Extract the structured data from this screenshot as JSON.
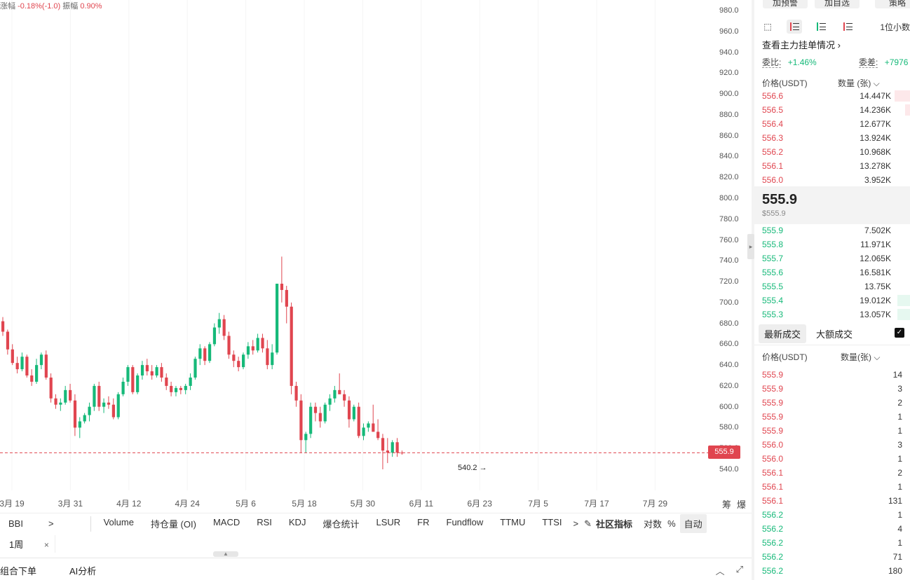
{
  "chart_header": {
    "change_label": "涨幅",
    "change_value": "-0.18%(-1.0)",
    "amplitude_label": "振幅",
    "amplitude_value": "0.90%"
  },
  "chart_data": {
    "type": "candlestick",
    "y_ticks": [
      "980.0",
      "960.0",
      "940.0",
      "920.0",
      "900.0",
      "880.0",
      "860.0",
      "840.0",
      "820.0",
      "800.0",
      "780.0",
      "760.0",
      "740.0",
      "720.0",
      "700.0",
      "680.0",
      "660.0",
      "640.0",
      "620.0",
      "600.0",
      "580.0",
      "560.0",
      "540.0"
    ],
    "x_ticks": [
      "3月 19",
      "3月 31",
      "4月 12",
      "4月 24",
      "5月 6",
      "5月 18",
      "5月 30",
      "6月 11",
      "6月 23",
      "7月 5",
      "7月 17",
      "7月 29"
    ],
    "ylim": [
      540,
      980
    ],
    "current_price": "555.9",
    "min_marker": "540.2",
    "candles": [
      [
        682,
        686,
        668,
        672
      ],
      [
        672,
        674,
        650,
        655
      ],
      [
        655,
        660,
        640,
        642
      ],
      [
        642,
        648,
        632,
        636
      ],
      [
        636,
        652,
        634,
        648
      ],
      [
        648,
        650,
        628,
        630
      ],
      [
        630,
        636,
        620,
        624
      ],
      [
        624,
        646,
        622,
        640
      ],
      [
        640,
        652,
        636,
        650
      ],
      [
        650,
        654,
        626,
        628
      ],
      [
        628,
        632,
        604,
        608
      ],
      [
        608,
        612,
        598,
        602
      ],
      [
        602,
        608,
        596,
        604
      ],
      [
        604,
        620,
        602,
        616
      ],
      [
        616,
        622,
        604,
        606
      ],
      [
        606,
        612,
        572,
        580
      ],
      [
        580,
        590,
        570,
        586
      ],
      [
        586,
        594,
        584,
        592
      ],
      [
        592,
        604,
        586,
        600
      ],
      [
        600,
        622,
        596,
        620
      ],
      [
        620,
        624,
        596,
        600
      ],
      [
        600,
        608,
        594,
        604
      ],
      [
        604,
        610,
        598,
        602
      ],
      [
        602,
        608,
        588,
        590
      ],
      [
        590,
        614,
        588,
        612
      ],
      [
        612,
        628,
        610,
        624
      ],
      [
        624,
        640,
        620,
        638
      ],
      [
        638,
        640,
        612,
        614
      ],
      [
        614,
        632,
        612,
        630
      ],
      [
        630,
        644,
        626,
        640
      ],
      [
        640,
        646,
        630,
        634
      ],
      [
        634,
        640,
        626,
        630
      ],
      [
        630,
        640,
        628,
        638
      ],
      [
        638,
        642,
        624,
        628
      ],
      [
        628,
        632,
        616,
        620
      ],
      [
        620,
        624,
        610,
        614
      ],
      [
        614,
        620,
        610,
        618
      ],
      [
        618,
        620,
        612,
        616
      ],
      [
        616,
        622,
        612,
        620
      ],
      [
        620,
        632,
        616,
        628
      ],
      [
        628,
        648,
        626,
        646
      ],
      [
        646,
        660,
        640,
        656
      ],
      [
        656,
        658,
        640,
        644
      ],
      [
        644,
        662,
        642,
        660
      ],
      [
        660,
        680,
        658,
        676
      ],
      [
        676,
        690,
        670,
        684
      ],
      [
        684,
        688,
        664,
        668
      ],
      [
        668,
        672,
        646,
        650
      ],
      [
        650,
        654,
        638,
        644
      ],
      [
        644,
        648,
        634,
        638
      ],
      [
        638,
        652,
        636,
        650
      ],
      [
        650,
        662,
        646,
        658
      ],
      [
        658,
        664,
        650,
        654
      ],
      [
        654,
        670,
        652,
        666
      ],
      [
        666,
        670,
        652,
        656
      ],
      [
        656,
        664,
        636,
        640
      ],
      [
        640,
        660,
        636,
        652
      ],
      [
        652,
        718,
        650,
        718
      ],
      [
        718,
        744,
        700,
        712
      ],
      [
        712,
        716,
        680,
        696
      ],
      [
        696,
        700,
        612,
        620
      ],
      [
        620,
        624,
        600,
        606
      ],
      [
        606,
        612,
        556,
        568
      ],
      [
        568,
        576,
        556,
        574
      ],
      [
        574,
        604,
        570,
        600
      ],
      [
        600,
        604,
        586,
        594
      ],
      [
        594,
        600,
        580,
        586
      ],
      [
        586,
        604,
        584,
        602
      ],
      [
        602,
        612,
        596,
        608
      ],
      [
        608,
        620,
        604,
        616
      ],
      [
        616,
        632,
        612,
        612
      ],
      [
        612,
        616,
        600,
        606
      ],
      [
        606,
        610,
        580,
        588
      ],
      [
        588,
        602,
        586,
        600
      ],
      [
        600,
        604,
        570,
        572
      ],
      [
        572,
        584,
        568,
        580
      ],
      [
        580,
        586,
        576,
        584
      ],
      [
        584,
        602,
        576,
        576
      ],
      [
        576,
        588,
        568,
        570
      ],
      [
        570,
        574,
        540,
        558
      ],
      [
        558,
        570,
        546,
        556
      ],
      [
        556,
        568,
        552,
        566
      ],
      [
        566,
        570,
        552,
        556
      ],
      [
        556,
        558,
        554,
        555.9
      ]
    ]
  },
  "indicators": {
    "first": "BBI",
    "more_arrow": ">",
    "items": [
      "Volume",
      "持仓量 (OI)",
      "MACD",
      "RSI",
      "KDJ",
      "爆仓统计",
      "LSUR",
      "FR",
      "Fundflow",
      "TTMU",
      "TTSI"
    ],
    "more_arrow2": ">",
    "edit_icon": "✎",
    "community": "社区指标",
    "log": "对数",
    "percent": "%",
    "auto": "自动"
  },
  "axis_extras": {
    "chips": "筹",
    "burst": "爆"
  },
  "timeframe": {
    "chip": "1周",
    "close": "×"
  },
  "bottom_tabs": {
    "combo_order": "组合下单",
    "ai_analysis": "AI分析"
  },
  "right_panel": {
    "top_buttons": [
      "加预警",
      "加自选",
      "策略"
    ],
    "precision": "1位小数",
    "depth_link": "查看主力挂单情况",
    "ratio_label": "委比:",
    "ratio_value": "+1.46%",
    "diff_label": "委差:",
    "diff_value": "+7976",
    "ob_price_header": "价格(USDT)",
    "ob_qty_header": "数量 (张)",
    "asks": [
      {
        "price": "556.6",
        "qty": "14.447K",
        "depth": 0.1
      },
      {
        "price": "556.5",
        "qty": "14.236K",
        "depth": 0.03
      },
      {
        "price": "556.4",
        "qty": "12.677K",
        "depth": 0
      },
      {
        "price": "556.3",
        "qty": "13.924K",
        "depth": 0
      },
      {
        "price": "556.2",
        "qty": "10.968K",
        "depth": 0
      },
      {
        "price": "556.1",
        "qty": "13.278K",
        "depth": 0
      },
      {
        "price": "556.0",
        "qty": "3.952K",
        "depth": 0
      }
    ],
    "mid_price": "555.9",
    "mid_usd": "$555.9",
    "bids": [
      {
        "price": "555.9",
        "qty": "7.502K",
        "depth": 0
      },
      {
        "price": "555.8",
        "qty": "11.971K",
        "depth": 0
      },
      {
        "price": "555.7",
        "qty": "12.065K",
        "depth": 0
      },
      {
        "price": "555.6",
        "qty": "16.581K",
        "depth": 0
      },
      {
        "price": "555.5",
        "qty": "13.75K",
        "depth": 0
      },
      {
        "price": "555.4",
        "qty": "19.012K",
        "depth": 0.08
      },
      {
        "price": "555.3",
        "qty": "13.057K",
        "depth": 0.08
      }
    ],
    "trade_tabs": [
      "最新成交",
      "大额成交"
    ],
    "tr_price_header": "价格(USDT)",
    "tr_qty_header": "数量(张)",
    "trades": [
      {
        "price": "555.9",
        "qty": "14",
        "side": "sell"
      },
      {
        "price": "555.9",
        "qty": "3",
        "side": "sell"
      },
      {
        "price": "555.9",
        "qty": "2",
        "side": "sell"
      },
      {
        "price": "555.9",
        "qty": "1",
        "side": "sell"
      },
      {
        "price": "555.9",
        "qty": "1",
        "side": "sell"
      },
      {
        "price": "556.0",
        "qty": "3",
        "side": "sell"
      },
      {
        "price": "556.0",
        "qty": "1",
        "side": "sell"
      },
      {
        "price": "556.1",
        "qty": "2",
        "side": "sell"
      },
      {
        "price": "556.1",
        "qty": "1",
        "side": "sell"
      },
      {
        "price": "556.1",
        "qty": "131",
        "side": "sell"
      },
      {
        "price": "556.2",
        "qty": "1",
        "side": "buy"
      },
      {
        "price": "556.2",
        "qty": "4",
        "side": "buy"
      },
      {
        "price": "556.2",
        "qty": "1",
        "side": "buy"
      },
      {
        "price": "556.2",
        "qty": "71",
        "side": "buy"
      },
      {
        "price": "556.2",
        "qty": "180",
        "side": "buy"
      }
    ]
  },
  "colors": {
    "up": "#16b979",
    "down": "#e0454f"
  }
}
